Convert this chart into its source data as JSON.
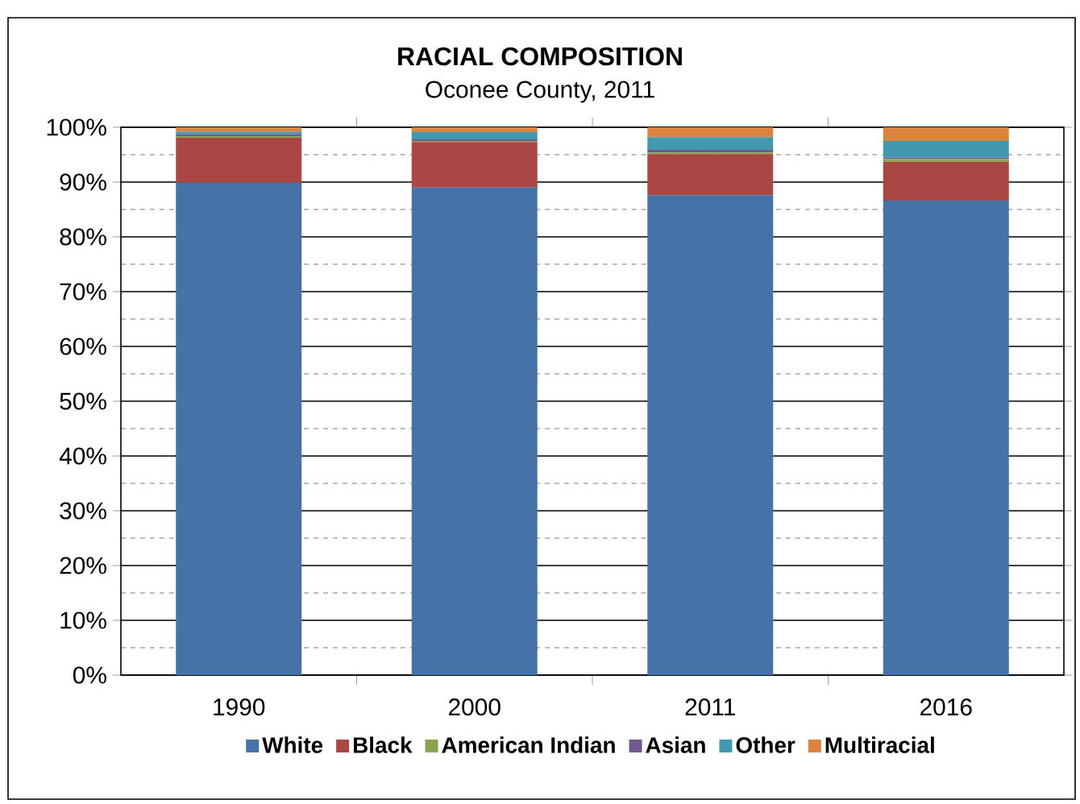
{
  "chart_data": {
    "type": "bar",
    "stacked": true,
    "title": "RACIAL COMPOSITION",
    "subtitle": "Oconee County, 2011",
    "categories": [
      "1990",
      "2000",
      "2011",
      "2016"
    ],
    "series": [
      {
        "name": "White",
        "color": "#4572a7",
        "values": [
          89.9,
          89.0,
          87.6,
          86.6
        ]
      },
      {
        "name": "Black",
        "color": "#aa4643",
        "values": [
          8.2,
          8.3,
          7.5,
          7.1
        ]
      },
      {
        "name": "American Indian",
        "color": "#89a54e",
        "values": [
          0.3,
          0.2,
          0.3,
          0.5
        ]
      },
      {
        "name": "Asian",
        "color": "#71588f",
        "values": [
          0.3,
          0.3,
          0.5,
          0.3
        ]
      },
      {
        "name": "Other",
        "color": "#4198af",
        "values": [
          0.5,
          1.3,
          2.3,
          3.0
        ]
      },
      {
        "name": "Multiracial",
        "color": "#db843d",
        "values": [
          0.8,
          0.9,
          1.8,
          2.5
        ]
      }
    ],
    "ylim": [
      0,
      100
    ],
    "yticks": [
      {
        "value": 0,
        "label": "0%"
      },
      {
        "value": 10,
        "label": "10%"
      },
      {
        "value": 20,
        "label": "20%"
      },
      {
        "value": 30,
        "label": "30%"
      },
      {
        "value": 40,
        "label": "40%"
      },
      {
        "value": 50,
        "label": "50%"
      },
      {
        "value": 60,
        "label": "60%"
      },
      {
        "value": 70,
        "label": "70%"
      },
      {
        "value": 80,
        "label": "80%"
      },
      {
        "value": 90,
        "label": "90%"
      },
      {
        "value": 100,
        "label": "100%"
      }
    ],
    "grid": "y",
    "legend": "bottom"
  }
}
